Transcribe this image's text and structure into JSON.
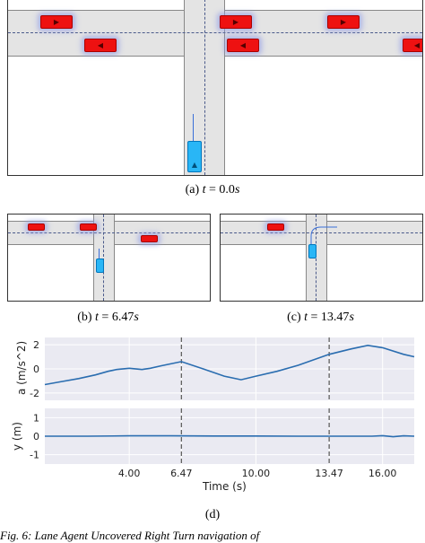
{
  "panels": {
    "a": {
      "caption_prefix": "(a)",
      "caption_var": "t",
      "caption_value": "= 0.0",
      "caption_unit": "s"
    },
    "b": {
      "caption_prefix": "(b)",
      "caption_var": "t",
      "caption_value": "= 6.47",
      "caption_unit": "s"
    },
    "c": {
      "caption_prefix": "(c)",
      "caption_var": "t",
      "caption_value": "= 13.47",
      "caption_unit": "s"
    },
    "d": {
      "caption": "(d)"
    }
  },
  "footer": {
    "text": "Fig. 6: Lane Agent Uncovered Right Turn navigation of"
  },
  "chart_data": [
    {
      "type": "line",
      "ylabel": "a (m/s^2)",
      "xlim": [
        0,
        17.5
      ],
      "ylim": [
        -2.6,
        2.6
      ],
      "yticks": [
        -2,
        0,
        2
      ],
      "ytick_labels": [
        "-2",
        "0",
        "2"
      ],
      "vlines": [
        6.47,
        13.47
      ],
      "series": [
        {
          "color": "#2a6db0",
          "x": [
            0,
            0.8,
            1.6,
            2.4,
            3.0,
            3.4,
            4.0,
            4.6,
            5.0,
            5.5,
            6.47,
            7.5,
            8.5,
            9.3,
            10.0,
            11.0,
            12.0,
            13.47,
            14.5,
            15.3,
            16.0,
            17.0,
            17.5
          ],
          "y": [
            -1.3,
            -1.05,
            -0.8,
            -0.5,
            -0.2,
            -0.05,
            0.05,
            -0.05,
            0.05,
            0.25,
            0.6,
            0.0,
            -0.6,
            -0.9,
            -0.6,
            -0.2,
            0.3,
            1.2,
            1.65,
            1.95,
            1.75,
            1.2,
            1.0
          ]
        }
      ]
    },
    {
      "type": "line",
      "ylabel": "y (m)",
      "xlabel": "Time (s)",
      "xlim": [
        0,
        17.5
      ],
      "ylim": [
        -1.5,
        1.5
      ],
      "yticks": [
        -1,
        0,
        1
      ],
      "ytick_labels": [
        "-1",
        "0",
        "1"
      ],
      "xticks": [
        4.0,
        6.47,
        10.0,
        13.47,
        16.0
      ],
      "xtick_labels": [
        "4.00",
        "6.47",
        "10.00",
        "13.47",
        "16.00"
      ],
      "vlines": [
        6.47,
        13.47
      ],
      "series": [
        {
          "color": "#2a6db0",
          "x": [
            0,
            2,
            4,
            6,
            8,
            10,
            12,
            14,
            15.5,
            16.0,
            16.5,
            17.0,
            17.5
          ],
          "y": [
            0.0,
            0.0,
            0.02,
            0.02,
            0.01,
            0.01,
            0.0,
            0.0,
            0.0,
            0.03,
            -0.03,
            0.02,
            0.0
          ]
        }
      ]
    }
  ]
}
